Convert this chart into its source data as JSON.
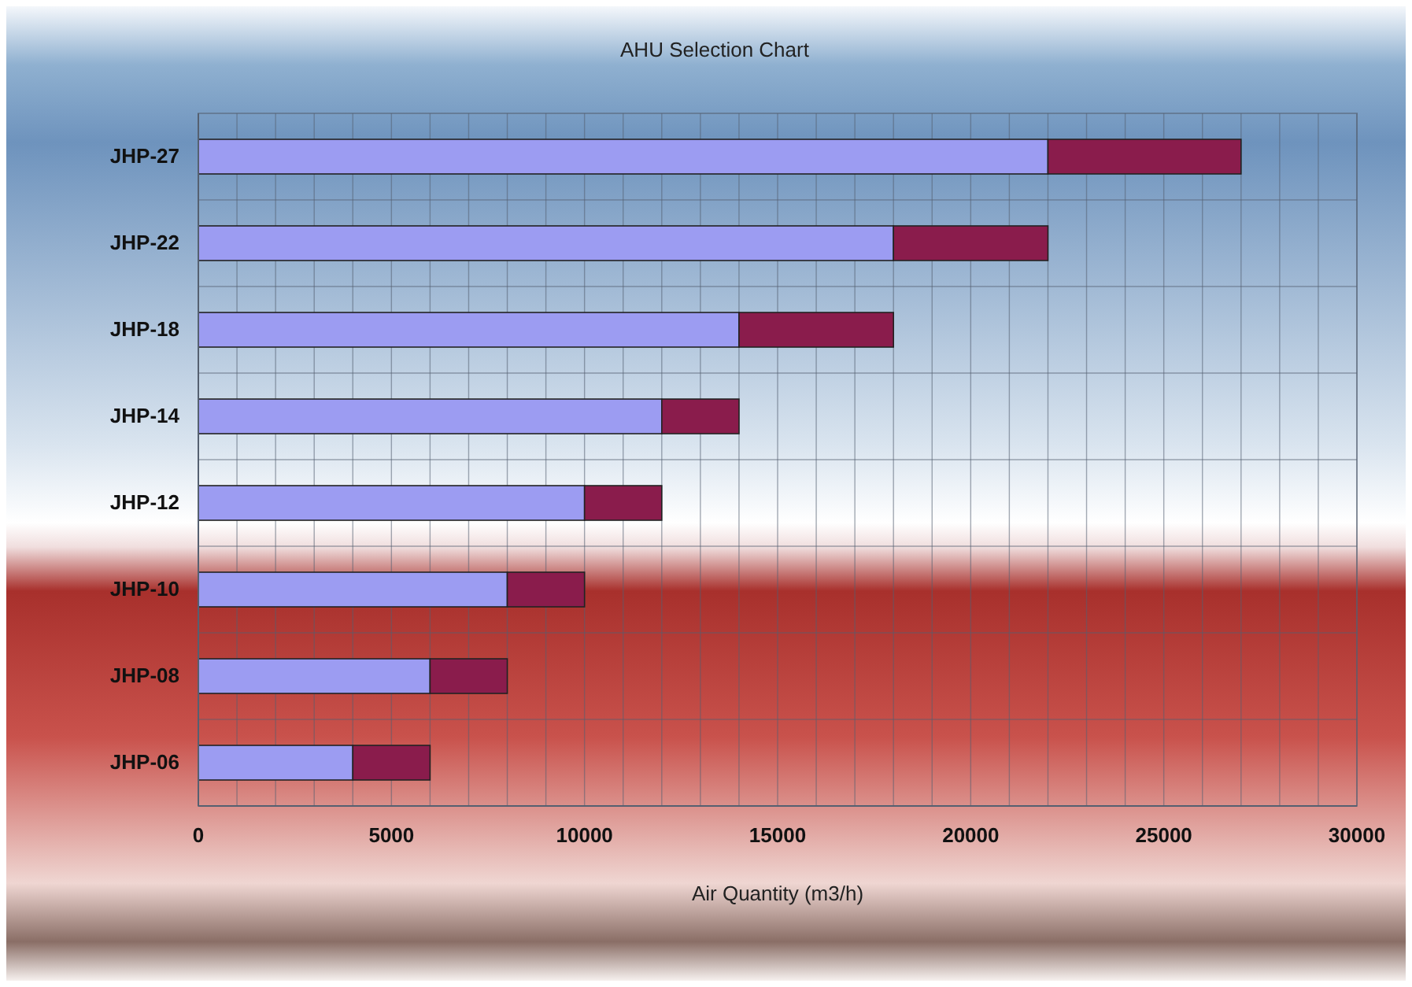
{
  "chart_data": {
    "type": "bar",
    "orientation": "horizontal",
    "stacked": true,
    "title": "AHU Selection Chart",
    "xlabel": "Air Quantity (m3/h)",
    "categories": [
      "JHP-27",
      "JHP-22",
      "JHP-18",
      "JHP-14",
      "JHP-12",
      "JHP-10",
      "JHP-08",
      "JHP-06"
    ],
    "series": [
      {
        "color": "#9c9cf2",
        "values": [
          22000,
          18000,
          14000,
          12000,
          10000,
          8000,
          6000,
          4000
        ]
      },
      {
        "color": "#8a1c4c",
        "values": [
          5000,
          4000,
          4000,
          2000,
          2000,
          2000,
          2000,
          2000
        ]
      }
    ],
    "xlim": [
      0,
      30000
    ],
    "xticks": [
      0,
      {
        "value": 1000,
        "label": null
      },
      {
        "value": 2000,
        "label": null
      },
      {
        "value": 3000,
        "label": null
      },
      {
        "value": 4000,
        "label": null
      },
      5000,
      {
        "value": 6000,
        "label": null
      },
      {
        "value": 7000,
        "label": null
      },
      {
        "value": 8000,
        "label": null
      },
      {
        "value": 9000,
        "label": null
      },
      10000,
      {
        "value": 11000,
        "label": null
      },
      {
        "value": 12000,
        "label": null
      },
      {
        "value": 13000,
        "label": null
      },
      {
        "value": 14000,
        "label": null
      },
      15000,
      {
        "value": 16000,
        "label": null
      },
      {
        "value": 17000,
        "label": null
      },
      {
        "value": 18000,
        "label": null
      },
      {
        "value": 19000,
        "label": null
      },
      20000,
      {
        "value": 21000,
        "label": null
      },
      {
        "value": 22000,
        "label": null
      },
      {
        "value": 23000,
        "label": null
      },
      {
        "value": 24000,
        "label": null
      },
      25000,
      {
        "value": 26000,
        "label": null
      },
      {
        "value": 27000,
        "label": null
      },
      {
        "value": 28000,
        "label": null
      },
      {
        "value": 29000,
        "label": null
      },
      30000
    ],
    "grid": "x"
  }
}
